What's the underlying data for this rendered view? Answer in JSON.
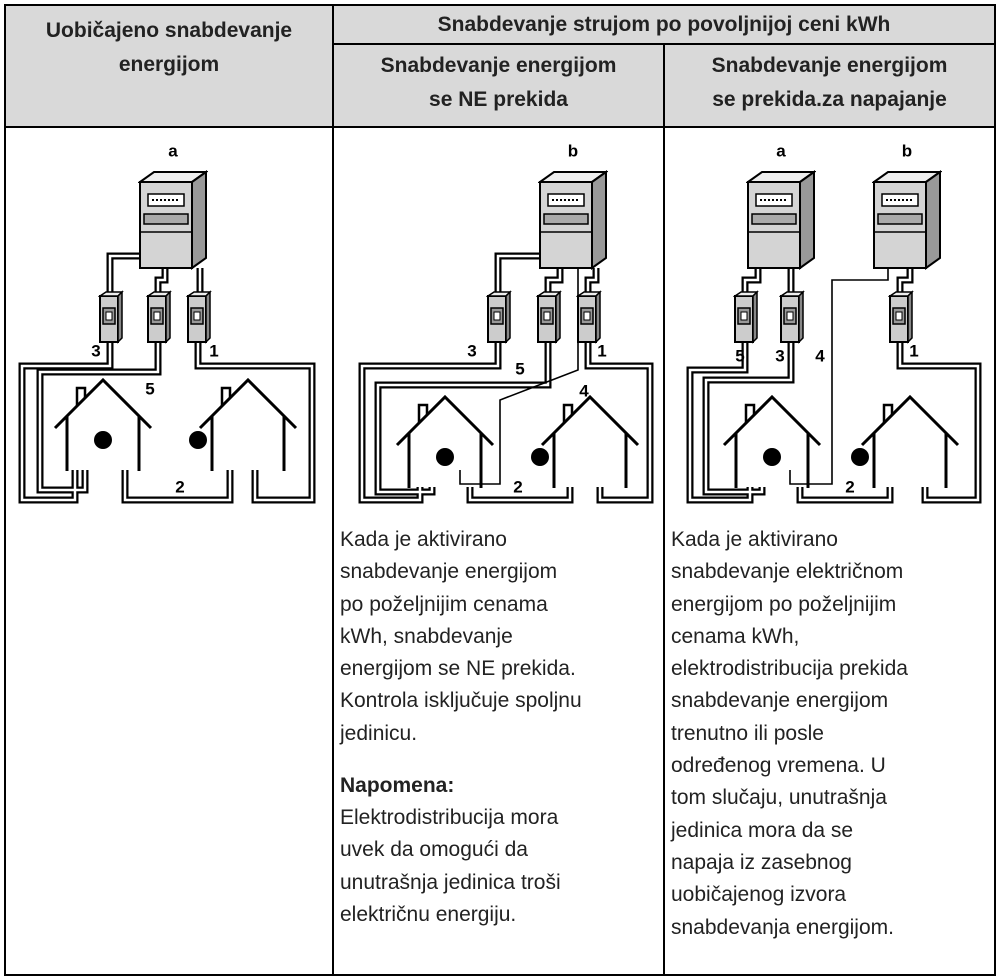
{
  "header": {
    "col1": [
      "Uobičajeno snabdevanje",
      "energijom"
    ],
    "group": "Snabdevanje strujom po povoljnijoj ceni kWh",
    "col2": [
      "Snabdevanje energijom",
      "se NE prekida"
    ],
    "col3": [
      "Snabdevanje energijom",
      "se prekida.za napajanje"
    ]
  },
  "diagrams": [
    {
      "labels": [
        "a",
        "3",
        "5",
        "1",
        "2"
      ]
    },
    {
      "labels": [
        "b",
        "3",
        "5",
        "1",
        "4",
        "2"
      ]
    },
    {
      "labels": [
        "a",
        "b",
        "5",
        "3",
        "4",
        "1",
        "2"
      ]
    }
  ],
  "body": {
    "col2": {
      "text": [
        "Kada je aktivirano",
        "snabdevanje energijom",
        "po poželjnijim cenama",
        "kWh, snabdevanje",
        "energijom se NE prekida.",
        "Kontrola isključuje spoljnu",
        "jedinicu."
      ],
      "note_title": "Napomena:",
      "note": [
        "Elektrodistribucija mora",
        "uvek da omogući da",
        "unutrašnja jedinica troši",
        "električnu energiju."
      ]
    },
    "col3": {
      "text": [
        "Kada je aktivirano",
        "snabdevanje električnom",
        "energijom po poželjnijim",
        "cenama kWh,",
        "elektrodistribucija prekida",
        "snabdevanje energijom",
        "trenutno ili posle",
        "određenog vremena. U",
        "tom slučaju, unutrašnja",
        "jedinica mora da se",
        "napaja iz zasebnog",
        "uobičajenog izvora",
        "snabdevanja energijom."
      ]
    }
  }
}
